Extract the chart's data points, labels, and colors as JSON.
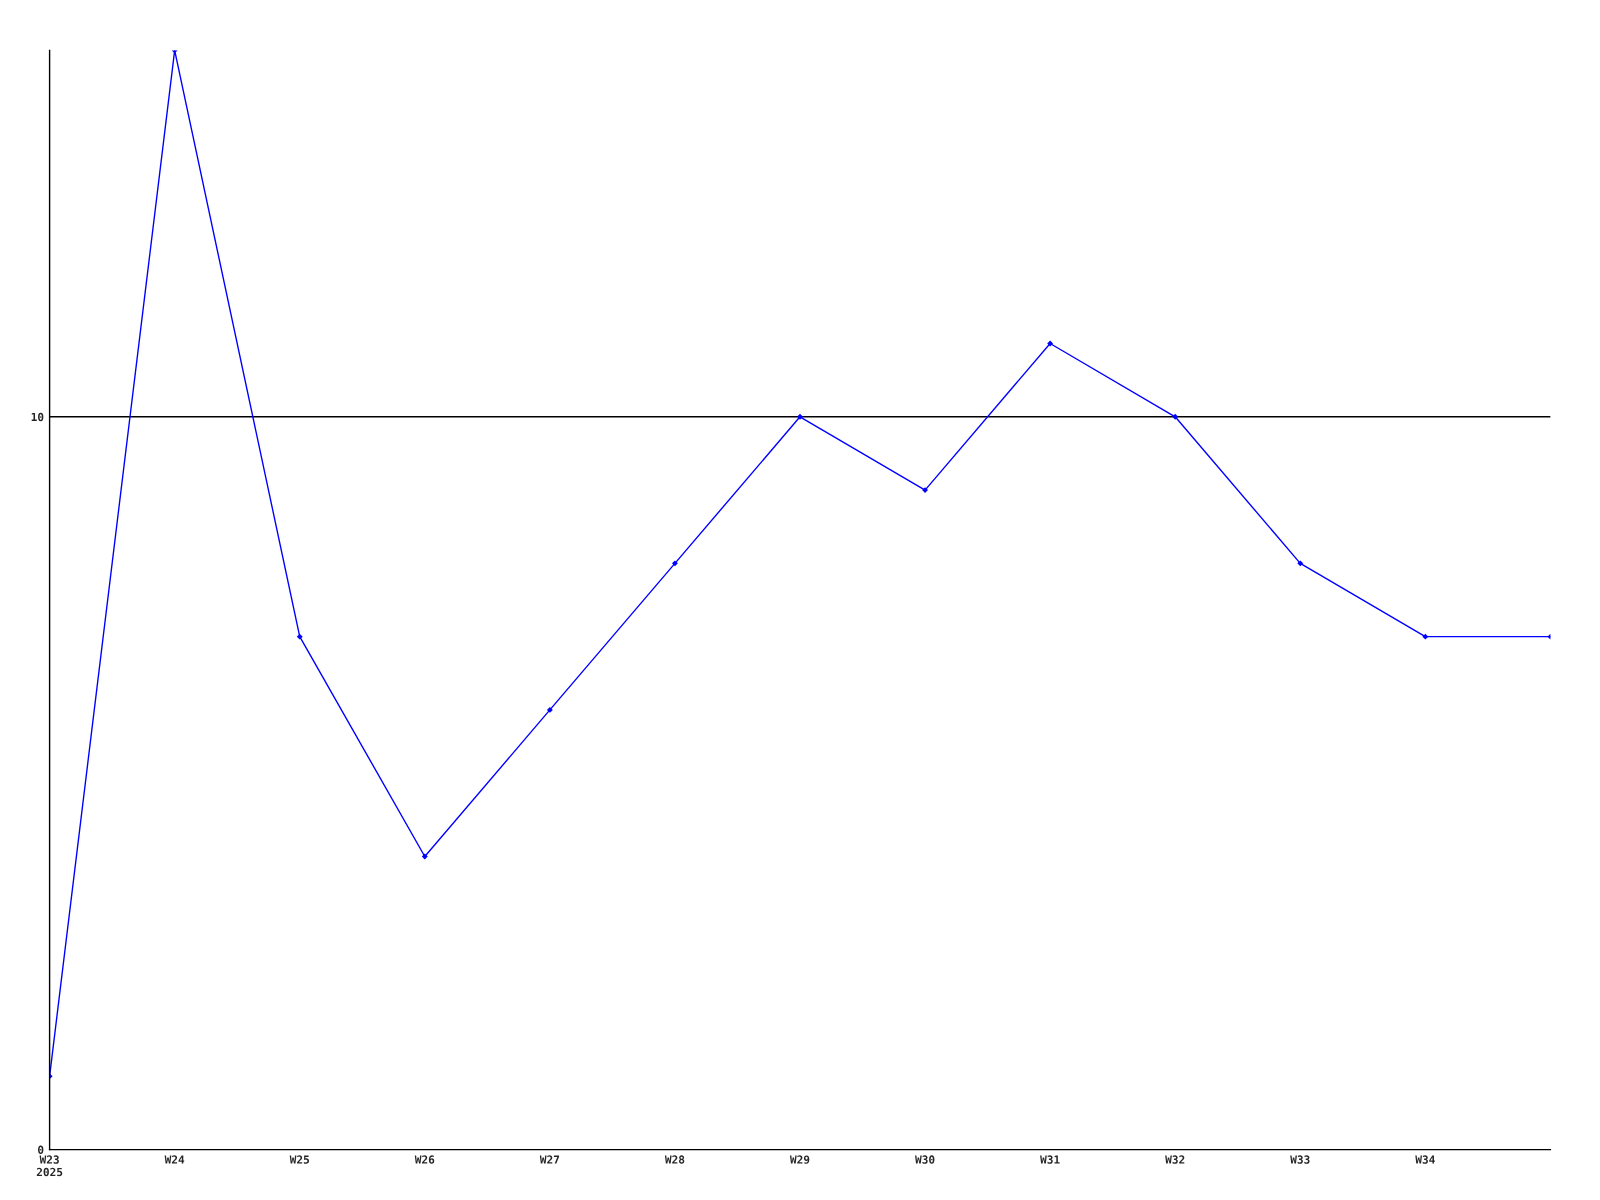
{
  "chart_data": {
    "type": "line",
    "categories": [
      "W23\n2025",
      "W24",
      "W25",
      "W26",
      "W27",
      "W28",
      "W29",
      "W30",
      "W31",
      "W32",
      "W33",
      "W34",
      null
    ],
    "series": [
      {
        "color": "#0000ff",
        "values": [
          1,
          15,
          7,
          4,
          6,
          8,
          10,
          9,
          11,
          10,
          8,
          7,
          7
        ]
      }
    ],
    "ylim": [
      0,
      15
    ],
    "yticks": [
      0,
      10
    ],
    "grid": "y",
    "marker": "diamond",
    "line_style": "solid"
  }
}
